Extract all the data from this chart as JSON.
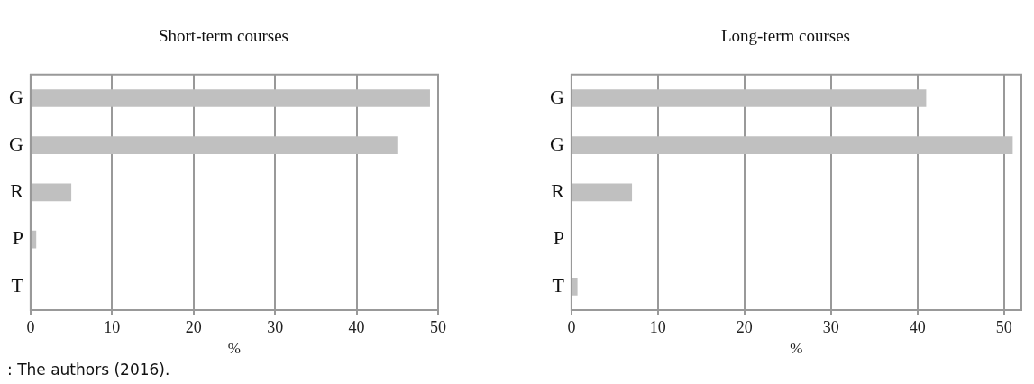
{
  "chart_data": [
    {
      "type": "bar",
      "orientation": "horizontal",
      "title": "Short-term courses",
      "xlabel": "%",
      "categories": [
        "G",
        "G",
        "R",
        "P",
        "T"
      ],
      "values": [
        49,
        45,
        5,
        0.7,
        0
      ],
      "color": "#c0c0c0",
      "xlim": [
        0,
        50
      ],
      "xticks": [
        0,
        10,
        20,
        30,
        40,
        50
      ],
      "grid": "x",
      "legend": false,
      "annotations": [
        ": The authors (2016)."
      ]
    },
    {
      "type": "bar",
      "orientation": "horizontal",
      "title": "Long-term courses",
      "xlabel": "%",
      "categories": [
        "G",
        "G",
        "R",
        "P",
        "T"
      ],
      "values": [
        41,
        51,
        7,
        0,
        0.7
      ],
      "color": "#c0c0c0",
      "xlim": [
        0,
        52
      ],
      "xticks": [
        0,
        10,
        20,
        30,
        40,
        50
      ],
      "grid": "x",
      "legend": false
    }
  ]
}
